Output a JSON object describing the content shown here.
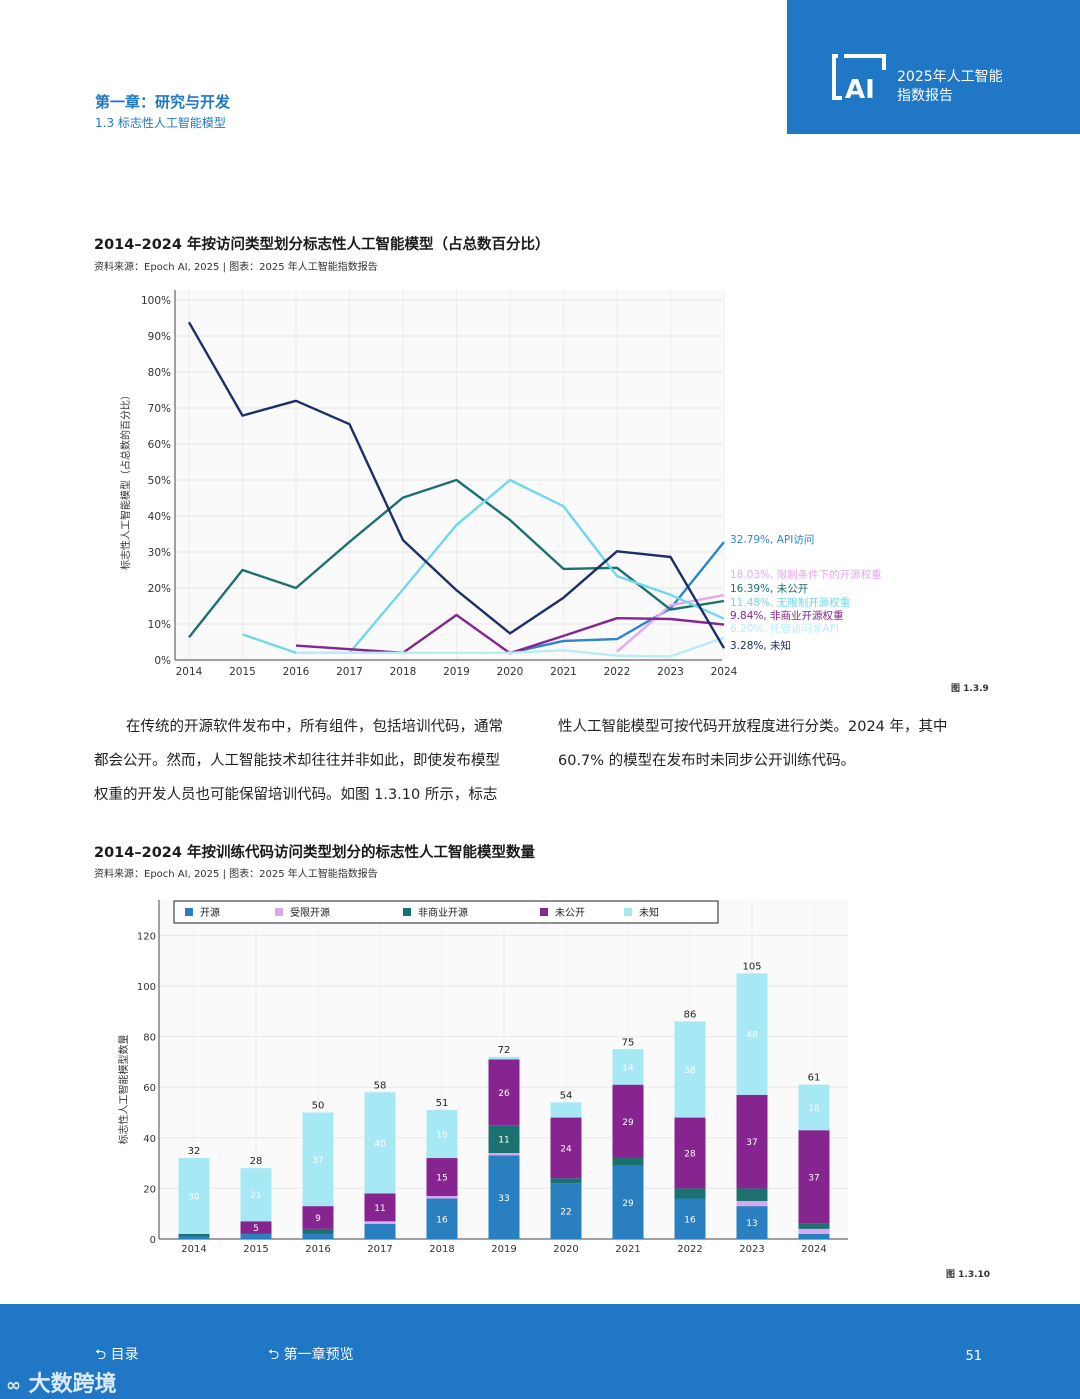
{
  "header": {
    "chapter_title": "第一章：研究与开发",
    "section_title": "1.3 标志性人工智能模型",
    "brand_line1": "2025年人工智能",
    "brand_line2": "指数报告",
    "brand_logo_text": "AI"
  },
  "colors": {
    "brand": "#1f77c6",
    "api": "#2a86c8",
    "restricted": "#e6a8f2",
    "undisclosed": "#1d7070",
    "unrestricted": "#6fd8ea",
    "noncommercial": "#86258f",
    "hosted": "#b8ecf7",
    "unknown": "#1c2f66"
  },
  "chart1": {
    "title": "2014–2024 年按访问类型划分标志性人工智能模型（占总数百分比）",
    "source": "资料来源：Epoch AI, 2025 | 图表：2025 年人工智能指数报告",
    "figure_no": "图 1.3.9"
  },
  "chart2": {
    "title": "2014–2024 年按训练代码访问类型划分的标志性人工智能模型数量",
    "source": "资料来源：Epoch AI, 2025 | 图表：2025 年人工智能指数报告",
    "figure_no": "图 1.3.10"
  },
  "body": {
    "left_lines": [
      "在传统的开源软件发布中，所有组件，包括培训代码，通常",
      "都会公开。然而，人工智能技术却往往并非如此，即使发布模型",
      "权重的开发人员也可能保留培训代码。如图 1.3.10 所示，标志"
    ],
    "right_lines": [
      "性人工智能模型可按代码开放程度进行分类。2024 年，其中",
      "60.7% 的模型在发布时未同步公开训练代码。"
    ]
  },
  "footer": {
    "toc_label": "目录",
    "preview_label": "第一章预览",
    "page_number": "51",
    "watermark": "大数跨境"
  },
  "chart_data": [
    {
      "type": "line",
      "ylabel": "标志性人工智能模型（占总数的百分比）",
      "x": [
        "2014",
        "2015",
        "2016",
        "2017",
        "2018",
        "2019",
        "2020",
        "2021",
        "2022",
        "2023",
        "2024"
      ],
      "ylim": [
        0,
        100
      ],
      "yticks": [
        "0%",
        "10%",
        "20%",
        "30%",
        "40%",
        "50%",
        "60%",
        "70%",
        "80%",
        "90%",
        "100%"
      ],
      "series": [
        {
          "name": "API访问",
          "label": "32.79%, API访问",
          "color": "#2a86c8",
          "values": [
            null,
            null,
            null,
            null,
            null,
            null,
            2,
            5.3,
            5.8,
            14.3,
            32.79
          ]
        },
        {
          "name": "限制条件下的开源权重",
          "label": "18.03%, 限制条件下的开源权重",
          "color": "#e6a8f2",
          "values": [
            null,
            null,
            null,
            null,
            null,
            null,
            null,
            null,
            2.3,
            15.2,
            18.03
          ]
        },
        {
          "name": "未公开",
          "label": "16.39%, 未公开",
          "color": "#1d7070",
          "values": [
            6.3,
            25,
            20,
            32.8,
            45.1,
            50,
            38.9,
            25.3,
            25.6,
            14,
            16.39
          ]
        },
        {
          "name": "无限制开源权重",
          "label": "11.48%, 无限制开源权重",
          "color": "#6fd8ea",
          "values": [
            null,
            7.1,
            2,
            2,
            19.6,
            37.5,
            50,
            42.7,
            23.3,
            18.1,
            11.48
          ]
        },
        {
          "name": "非商业开源权重",
          "label": "9.84%, 非商业开源权重",
          "color": "#86258f",
          "values": [
            null,
            null,
            4,
            3,
            2,
            12.5,
            1.9,
            6.7,
            11.6,
            11.4,
            9.84
          ]
        },
        {
          "name": "托管访问非API",
          "label": "6.20%, 托管访问非API",
          "color": "#b8ecf7",
          "values": [
            null,
            null,
            2,
            2,
            2,
            2,
            2,
            2.7,
            1.2,
            1,
            6.2
          ]
        },
        {
          "name": "未知",
          "label": "3.28%, 未知",
          "color": "#1c2f66",
          "values": [
            93.8,
            67.9,
            72,
            65.5,
            33.3,
            19.4,
            7.4,
            17.3,
            30.2,
            28.6,
            3.28
          ]
        }
      ]
    },
    {
      "type": "bar",
      "stacked": true,
      "ylabel": "标志性人工智能模型数量",
      "categories": [
        "2014",
        "2015",
        "2016",
        "2017",
        "2018",
        "2019",
        "2020",
        "2021",
        "2022",
        "2023",
        "2024"
      ],
      "ylim": [
        0,
        130
      ],
      "yticks": [
        "0",
        "20",
        "40",
        "60",
        "80",
        "100",
        "120"
      ],
      "totals": [
        32,
        28,
        50,
        58,
        51,
        72,
        54,
        75,
        86,
        105,
        61
      ],
      "series": [
        {
          "name": "开源",
          "color": "#2a7fc1",
          "values": [
            1,
            2,
            2,
            6,
            16,
            33,
            22,
            29,
            16,
            13,
            2
          ]
        },
        {
          "name": "受限开源",
          "color": "#d8a8f0",
          "values": [
            0,
            0,
            0,
            1,
            1,
            1,
            0,
            0,
            0,
            2,
            2
          ]
        },
        {
          "name": "非商业开源",
          "color": "#1d7070",
          "values": [
            1,
            0,
            2,
            0,
            0,
            11,
            2,
            3,
            4,
            5,
            2
          ]
        },
        {
          "name": "未公开",
          "color": "#86258f",
          "values": [
            0,
            5,
            9,
            11,
            15,
            26,
            24,
            29,
            28,
            37,
            37
          ]
        },
        {
          "name": "未知",
          "color": "#a6e8f4",
          "values": [
            30,
            21,
            37,
            40,
            19,
            1,
            6,
            14,
            38,
            48,
            18
          ]
        }
      ],
      "segment_labels": [
        [
          "",
          "",
          "",
          "",
          "30"
        ],
        [
          "",
          "",
          "",
          "5",
          "21"
        ],
        [
          "",
          "",
          "",
          "9",
          "37"
        ],
        [
          "",
          "",
          "",
          "11",
          "40"
        ],
        [
          "16",
          "",
          "",
          "15",
          "19"
        ],
        [
          "33",
          "",
          "11",
          "26",
          ""
        ],
        [
          "22",
          "",
          "",
          "24",
          ""
        ],
        [
          "29",
          "",
          "",
          "29",
          "14"
        ],
        [
          "16",
          "",
          "",
          "28",
          "38"
        ],
        [
          "13",
          "",
          "",
          "37",
          "48"
        ],
        [
          "",
          "",
          "",
          "37",
          "18"
        ]
      ]
    }
  ]
}
